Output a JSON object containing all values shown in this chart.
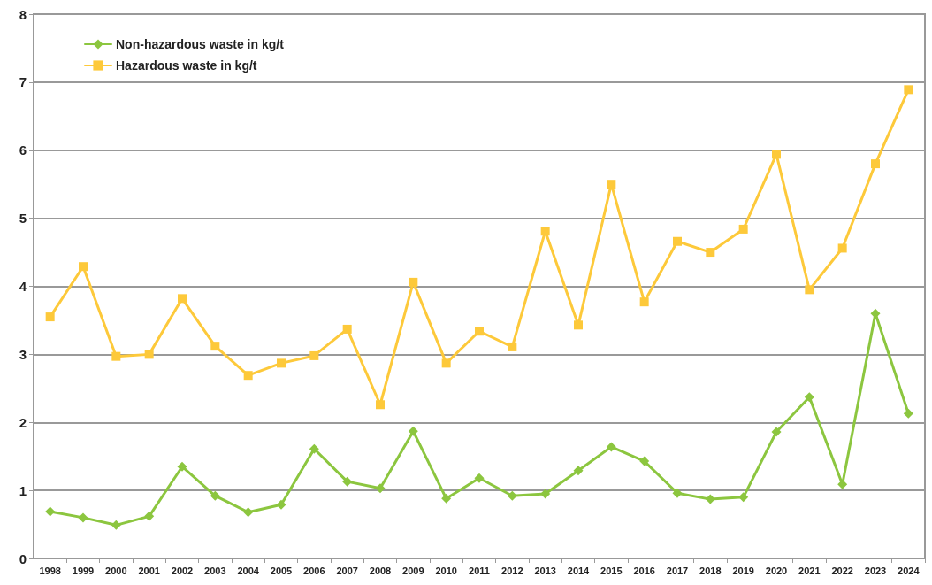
{
  "chart_data": {
    "type": "line",
    "categories": [
      "1998",
      "1999",
      "2000",
      "2001",
      "2002",
      "2003",
      "2004",
      "2005",
      "2006",
      "2007",
      "2008",
      "2009",
      "2010",
      "2011",
      "2012",
      "2013",
      "2014",
      "2015",
      "2016",
      "2017",
      "2018",
      "2019",
      "2020",
      "2021",
      "2022",
      "2023",
      "2024"
    ],
    "series": [
      {
        "name": "Non-hazardous waste in kg/t",
        "color": "#8cc63f",
        "marker": "diamond",
        "values": [
          0.69,
          0.6,
          0.49,
          0.62,
          1.35,
          0.92,
          0.68,
          0.79,
          1.61,
          1.13,
          1.03,
          1.87,
          0.88,
          1.18,
          0.92,
          0.95,
          1.29,
          1.64,
          1.43,
          0.96,
          0.87,
          0.9,
          1.86,
          2.37,
          1.09,
          3.6,
          2.13
        ]
      },
      {
        "name": "Hazardous waste in kg/t",
        "color": "#fdc93a",
        "marker": "square",
        "values": [
          3.55,
          4.29,
          2.97,
          3.0,
          3.82,
          3.12,
          2.69,
          2.87,
          2.98,
          3.37,
          2.26,
          4.06,
          2.87,
          3.34,
          3.11,
          4.81,
          3.43,
          5.5,
          3.77,
          4.66,
          4.5,
          4.84,
          5.94,
          3.95,
          4.56,
          5.8,
          6.89
        ]
      }
    ],
    "ylim": [
      0,
      8
    ],
    "yticks": [
      0,
      1,
      2,
      3,
      4,
      5,
      6,
      7,
      8
    ],
    "grid": "y",
    "legend": "top left",
    "line_style": "solid"
  }
}
